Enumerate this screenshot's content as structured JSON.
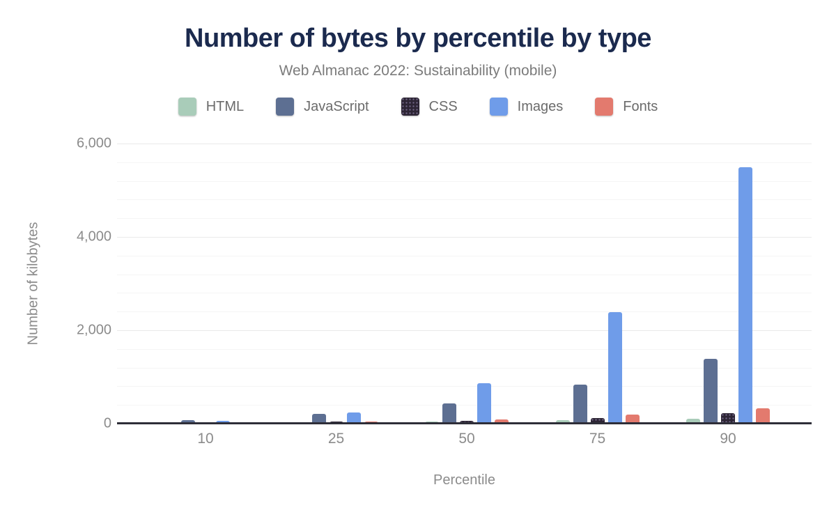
{
  "header": {
    "title": "Number of bytes by percentile by type",
    "subtitle": "Web Almanac 2022: Sustainability (mobile)"
  },
  "colors": {
    "title_text": "#1b2a4e",
    "muted_text": "#8b8b8b",
    "axis_line": "#2e2e38",
    "html_green": "#a9ccb9",
    "javascript_slate": "#5d6f92",
    "css_dark": "#2d2535",
    "images_blue": "#6f9ce9",
    "fonts_salmon": "#e37a6e"
  },
  "chart_data": {
    "type": "bar",
    "title": "Number of bytes by percentile by type",
    "subtitle": "Web Almanac 2022: Sustainability (mobile)",
    "xlabel": "Percentile",
    "ylabel": "Number of kilobytes",
    "categories": [
      "10",
      "25",
      "50",
      "75",
      "90"
    ],
    "series": [
      {
        "name": "HTML",
        "color": "#a9ccb9",
        "pattern": "solid",
        "values": [
          12,
          25,
          40,
          70,
          110
        ]
      },
      {
        "name": "JavaScript",
        "color": "#5d6f92",
        "pattern": "solid",
        "values": [
          70,
          210,
          430,
          840,
          1390
        ]
      },
      {
        "name": "CSS",
        "color": "#2d2535",
        "pattern": "dots",
        "values": [
          10,
          45,
          65,
          120,
          225
        ]
      },
      {
        "name": "Images",
        "color": "#6f9ce9",
        "pattern": "solid",
        "values": [
          60,
          245,
          860,
          2390,
          5500
        ]
      },
      {
        "name": "Fonts",
        "color": "#e37a6e",
        "pattern": "solid",
        "values": [
          3,
          40,
          95,
          190,
          330
        ]
      }
    ],
    "ylim": [
      0,
      6000
    ],
    "y_major_ticks": [
      {
        "value": 0,
        "label": "0"
      },
      {
        "value": 2000,
        "label": "2,000"
      },
      {
        "value": 4000,
        "label": "4,000"
      },
      {
        "value": 6000,
        "label": "6,000"
      }
    ],
    "y_minor_step": 400,
    "grid": true,
    "legend_position": "top"
  }
}
